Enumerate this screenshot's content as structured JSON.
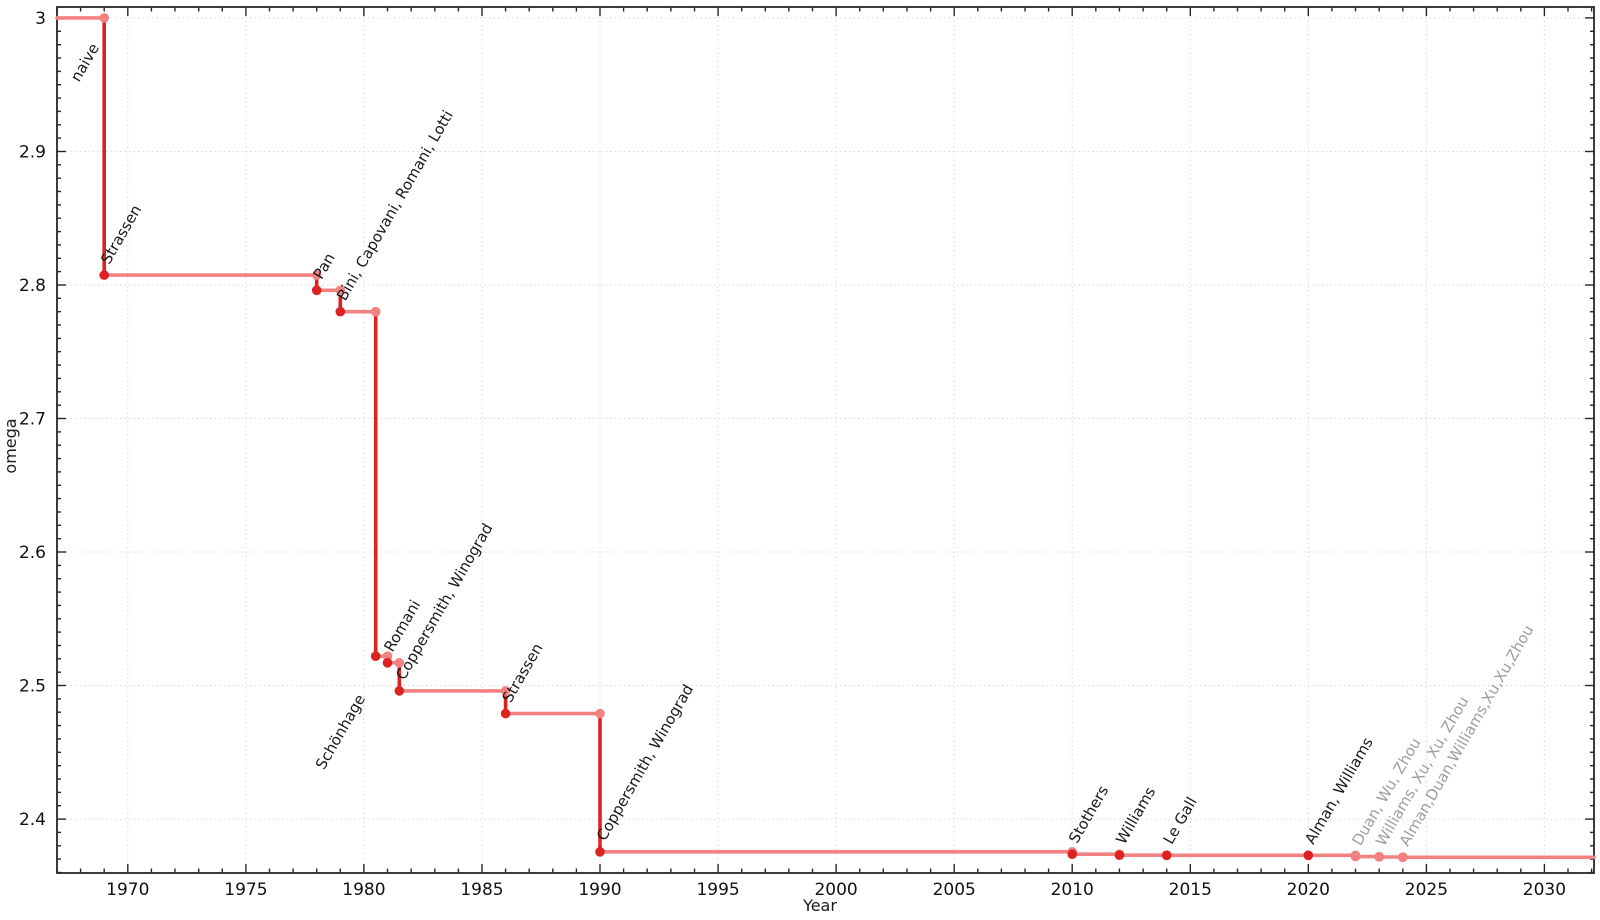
{
  "chart_data": {
    "type": "line",
    "subtype": "step-post",
    "title": "",
    "xlabel": "Year",
    "ylabel": "omega",
    "x_range": [
      1967,
      2032.1
    ],
    "y_range": [
      2.3596,
      3.0082
    ],
    "x_major_ticks": [
      1970,
      1975,
      1980,
      1985,
      1990,
      1995,
      2000,
      2005,
      2010,
      2015,
      2020,
      2025,
      2030
    ],
    "x_minor_step": 1,
    "y_major_ticks": [
      {
        "v": 3.0,
        "label": "3"
      },
      {
        "v": 2.9,
        "label": "2.9"
      },
      {
        "v": 2.8,
        "label": "2.8"
      },
      {
        "v": 2.7,
        "label": "2.7"
      },
      {
        "v": 2.6,
        "label": "2.6"
      },
      {
        "v": 2.5,
        "label": "2.5"
      },
      {
        "v": 2.4,
        "label": "2.4"
      }
    ],
    "y_minor_step": 0.01,
    "grid": {
      "major": true,
      "minor": false,
      "style": "dotted"
    },
    "legend": null,
    "initial": {
      "label": "naive",
      "omega": 3,
      "label_year": 1968.8,
      "label_omega": 2.978
    },
    "events": [
      {
        "year": 1969,
        "omega": 2.8074,
        "label": "Strassen",
        "muted": false,
        "label_anchor": "start"
      },
      {
        "year": 1978,
        "omega": 2.796,
        "label": "Pan",
        "muted": false,
        "label_anchor": "start"
      },
      {
        "year": 1979,
        "omega": 2.78,
        "label": "Bini, Capovani, Romani, Lotti",
        "muted": false,
        "label_anchor": "start"
      },
      {
        "year": 1980.5,
        "omega": 2.522,
        "label": "Schönhage",
        "muted": false,
        "label_anchor": "end"
      },
      {
        "year": 1981,
        "omega": 2.517,
        "label": "Romani",
        "muted": false,
        "label_anchor": "start"
      },
      {
        "year": 1981.5,
        "omega": 2.496,
        "label": "Coppersmith, Winograd",
        "muted": false,
        "label_anchor": "start"
      },
      {
        "year": 1986,
        "omega": 2.479,
        "label": "Strassen",
        "muted": false,
        "label_anchor": "start"
      },
      {
        "year": 1990,
        "omega": 2.3755,
        "label": "Coppersmith, Winograd",
        "muted": false,
        "label_anchor": "start"
      },
      {
        "year": 2010,
        "omega": 2.3737,
        "label": "Stothers",
        "muted": false,
        "label_anchor": "start"
      },
      {
        "year": 2012,
        "omega": 2.3729,
        "label": "Williams",
        "muted": false,
        "label_anchor": "start"
      },
      {
        "year": 2014,
        "omega": 2.3728639,
        "label": "Le Gall",
        "muted": false,
        "label_anchor": "start"
      },
      {
        "year": 2020,
        "omega": 2.3728596,
        "label": "Alman, Williams",
        "muted": false,
        "label_anchor": "start"
      },
      {
        "year": 2022,
        "omega": 2.371866,
        "label": "Duan, Wu, Zhou",
        "muted": true,
        "label_anchor": "start"
      },
      {
        "year": 2023,
        "omega": 2.371552,
        "label": "Williams, Xu, Xu, Zhou",
        "muted": true,
        "label_anchor": "start"
      },
      {
        "year": 2024,
        "omega": 2.371339,
        "label": "Alman,Duan,Williams,Xu,Xu,Zhou",
        "muted": true,
        "label_anchor": "start"
      }
    ],
    "line_extends_to_right_edge": true,
    "colors": {
      "plateau_line": "#f28282",
      "drop_line": "#dd2222",
      "marker_new": "#dd2222",
      "marker_plateau_end": "#f28282",
      "label_text": "#1a1a1a",
      "label_muted": "#9e9e9e",
      "tick_text": "#111111",
      "grid": "#d8d8d8",
      "axis": "#262626",
      "background": "#ffffff"
    }
  }
}
